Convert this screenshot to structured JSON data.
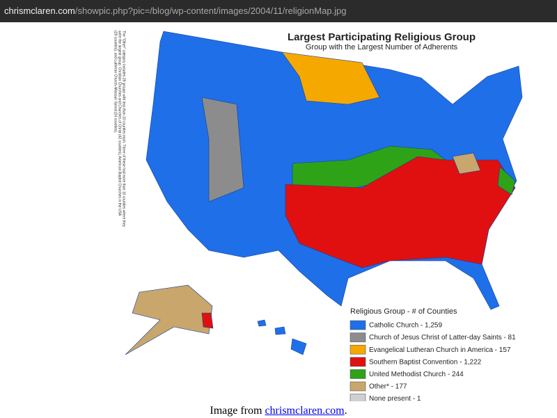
{
  "url": {
    "host": "chrismclaren.com",
    "path": "/showpic.php?pic=/blog/wp-content/images/2004/11/religionMap.jpg"
  },
  "map": {
    "title": "Largest Participating Religious Group",
    "subtitle": "Group with the Largest Number of Adherents",
    "note": [
      "The \"Other\" category includes 29 groups with less than 10 counties each. Three of these had more than 10 counties where they",
      "were the largest group: Christian Churches and Churches of Christ (42 counties), American Baptist Churches in the USA",
      "(29 counties), and Lutheran Church–Missouri Synod (24 counties)."
    ],
    "legend": {
      "title": "Religious Group - # of Counties",
      "items": [
        {
          "label": "Catholic Church - 1,259",
          "color": "#1f6fe8"
        },
        {
          "label": "Church of Jesus Christ of Latter-day Saints - 81",
          "color": "#8c8c8c"
        },
        {
          "label": "Evangelical Lutheran Church in America - 157",
          "color": "#f5a800"
        },
        {
          "label": "Southern Baptist Convention - 1,222",
          "color": "#e01010"
        },
        {
          "label": "United Methodist Church - 244",
          "color": "#2ea318"
        },
        {
          "label": "Other* - 177",
          "color": "#c9a66b"
        },
        {
          "label": "None present - 1",
          "color": "#d0d0d0"
        }
      ]
    }
  },
  "caption": {
    "prefix": "Image from ",
    "link": "chrismclaren.com",
    "suffix": "."
  }
}
